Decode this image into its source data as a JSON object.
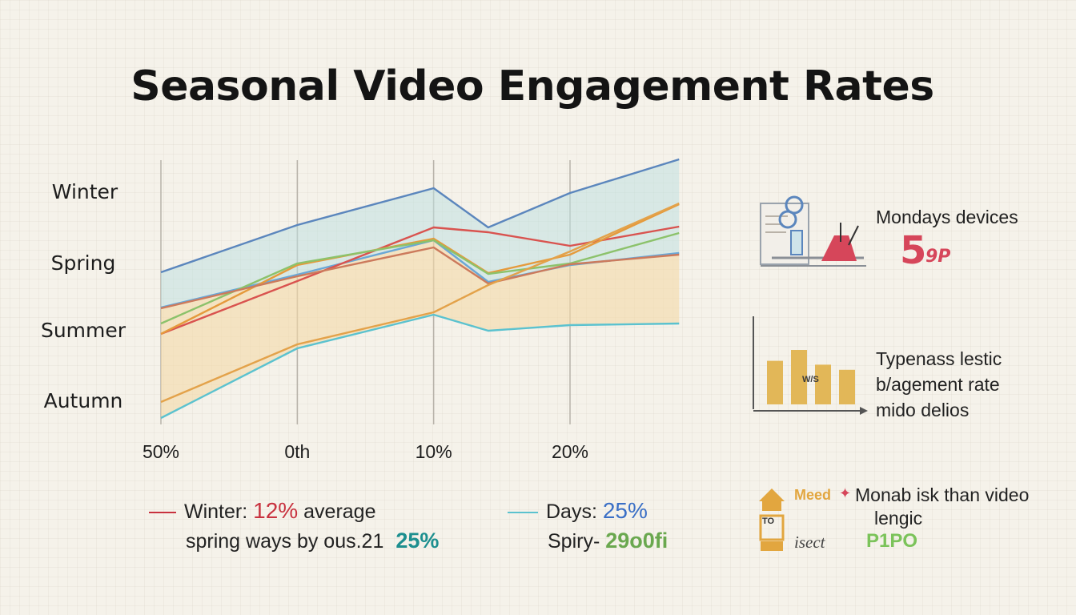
{
  "chart_data": {
    "type": "line",
    "title": "Seasonal Video Engagement Rates",
    "categories": [
      "Winter",
      "Spring",
      "Summer",
      "Autumn"
    ],
    "x_ticks": [
      "50%",
      "0th",
      "10%",
      "20%"
    ],
    "x": [
      0,
      1,
      2,
      2.4,
      3,
      3.8
    ],
    "series": [
      {
        "color": "#5b86bd",
        "values": [
          340,
          281,
          235,
          284,
          241,
          199
        ]
      },
      {
        "color": "#6aa7d6",
        "values": [
          384,
          343,
          300,
          352,
          331,
          316
        ]
      },
      {
        "color": "#d9534f",
        "values": [
          417,
          351,
          284,
          290,
          307,
          283
        ]
      },
      {
        "color": "#e59a3c",
        "values": [
          417,
          331,
          298,
          341,
          318,
          255
        ]
      },
      {
        "color": "#8cc26b",
        "values": [
          404,
          329,
          300,
          342,
          329,
          291
        ]
      },
      {
        "color": "#cc7a5c",
        "values": [
          385,
          345,
          309,
          354,
          330,
          318
        ]
      },
      {
        "color": "#e3a24a",
        "values": [
          502,
          430,
          390,
          356,
          314,
          254
        ]
      },
      {
        "color": "#5bc2cf",
        "values": [
          522,
          435,
          393,
          413,
          406,
          404
        ]
      }
    ]
  },
  "legend": {
    "left": {
      "line1_text": "Winter:",
      "line1_value": "12%",
      "line1_suffix": "average",
      "line1_color": "#c8323f",
      "line2_text": "spring ways by ous.21",
      "line2_value": "25%",
      "line2_value_color": "#1d8f8f"
    },
    "right": {
      "line1_text": "Days:",
      "line1_value": "25%",
      "line1_color": "#5bc2cf",
      "line1_value_color": "#3a6fc6",
      "line2_text": "Spiry-",
      "line2_value": "29o0fi",
      "line2_value_color": "#6aa84f"
    }
  },
  "side": {
    "panel1_label": "Mondays devices",
    "panel1_value": "5",
    "panel1_value_suffix": "9P",
    "panel1_icon": "desk-user-icon",
    "panel2_lines": [
      "Typenass lestic",
      "b/agement rate",
      "mido delios"
    ],
    "panel2_bar_label": "W/S",
    "panel2_bars": [
      0.68,
      0.85,
      0.62,
      0.54
    ],
    "panel3_label_left": "Meed",
    "panel3_text_line1": "Monab isk than video",
    "panel3_text_line2": "lengic",
    "panel3_icon": "house-icon",
    "panel3_icon_label": "TO",
    "panel3_bottom_left": "isect",
    "panel3_bottom_right": "P1PO",
    "colors": {
      "accent_red": "#d6465a",
      "bar_fill": "#e2b758",
      "green": "#7bc35a"
    }
  }
}
